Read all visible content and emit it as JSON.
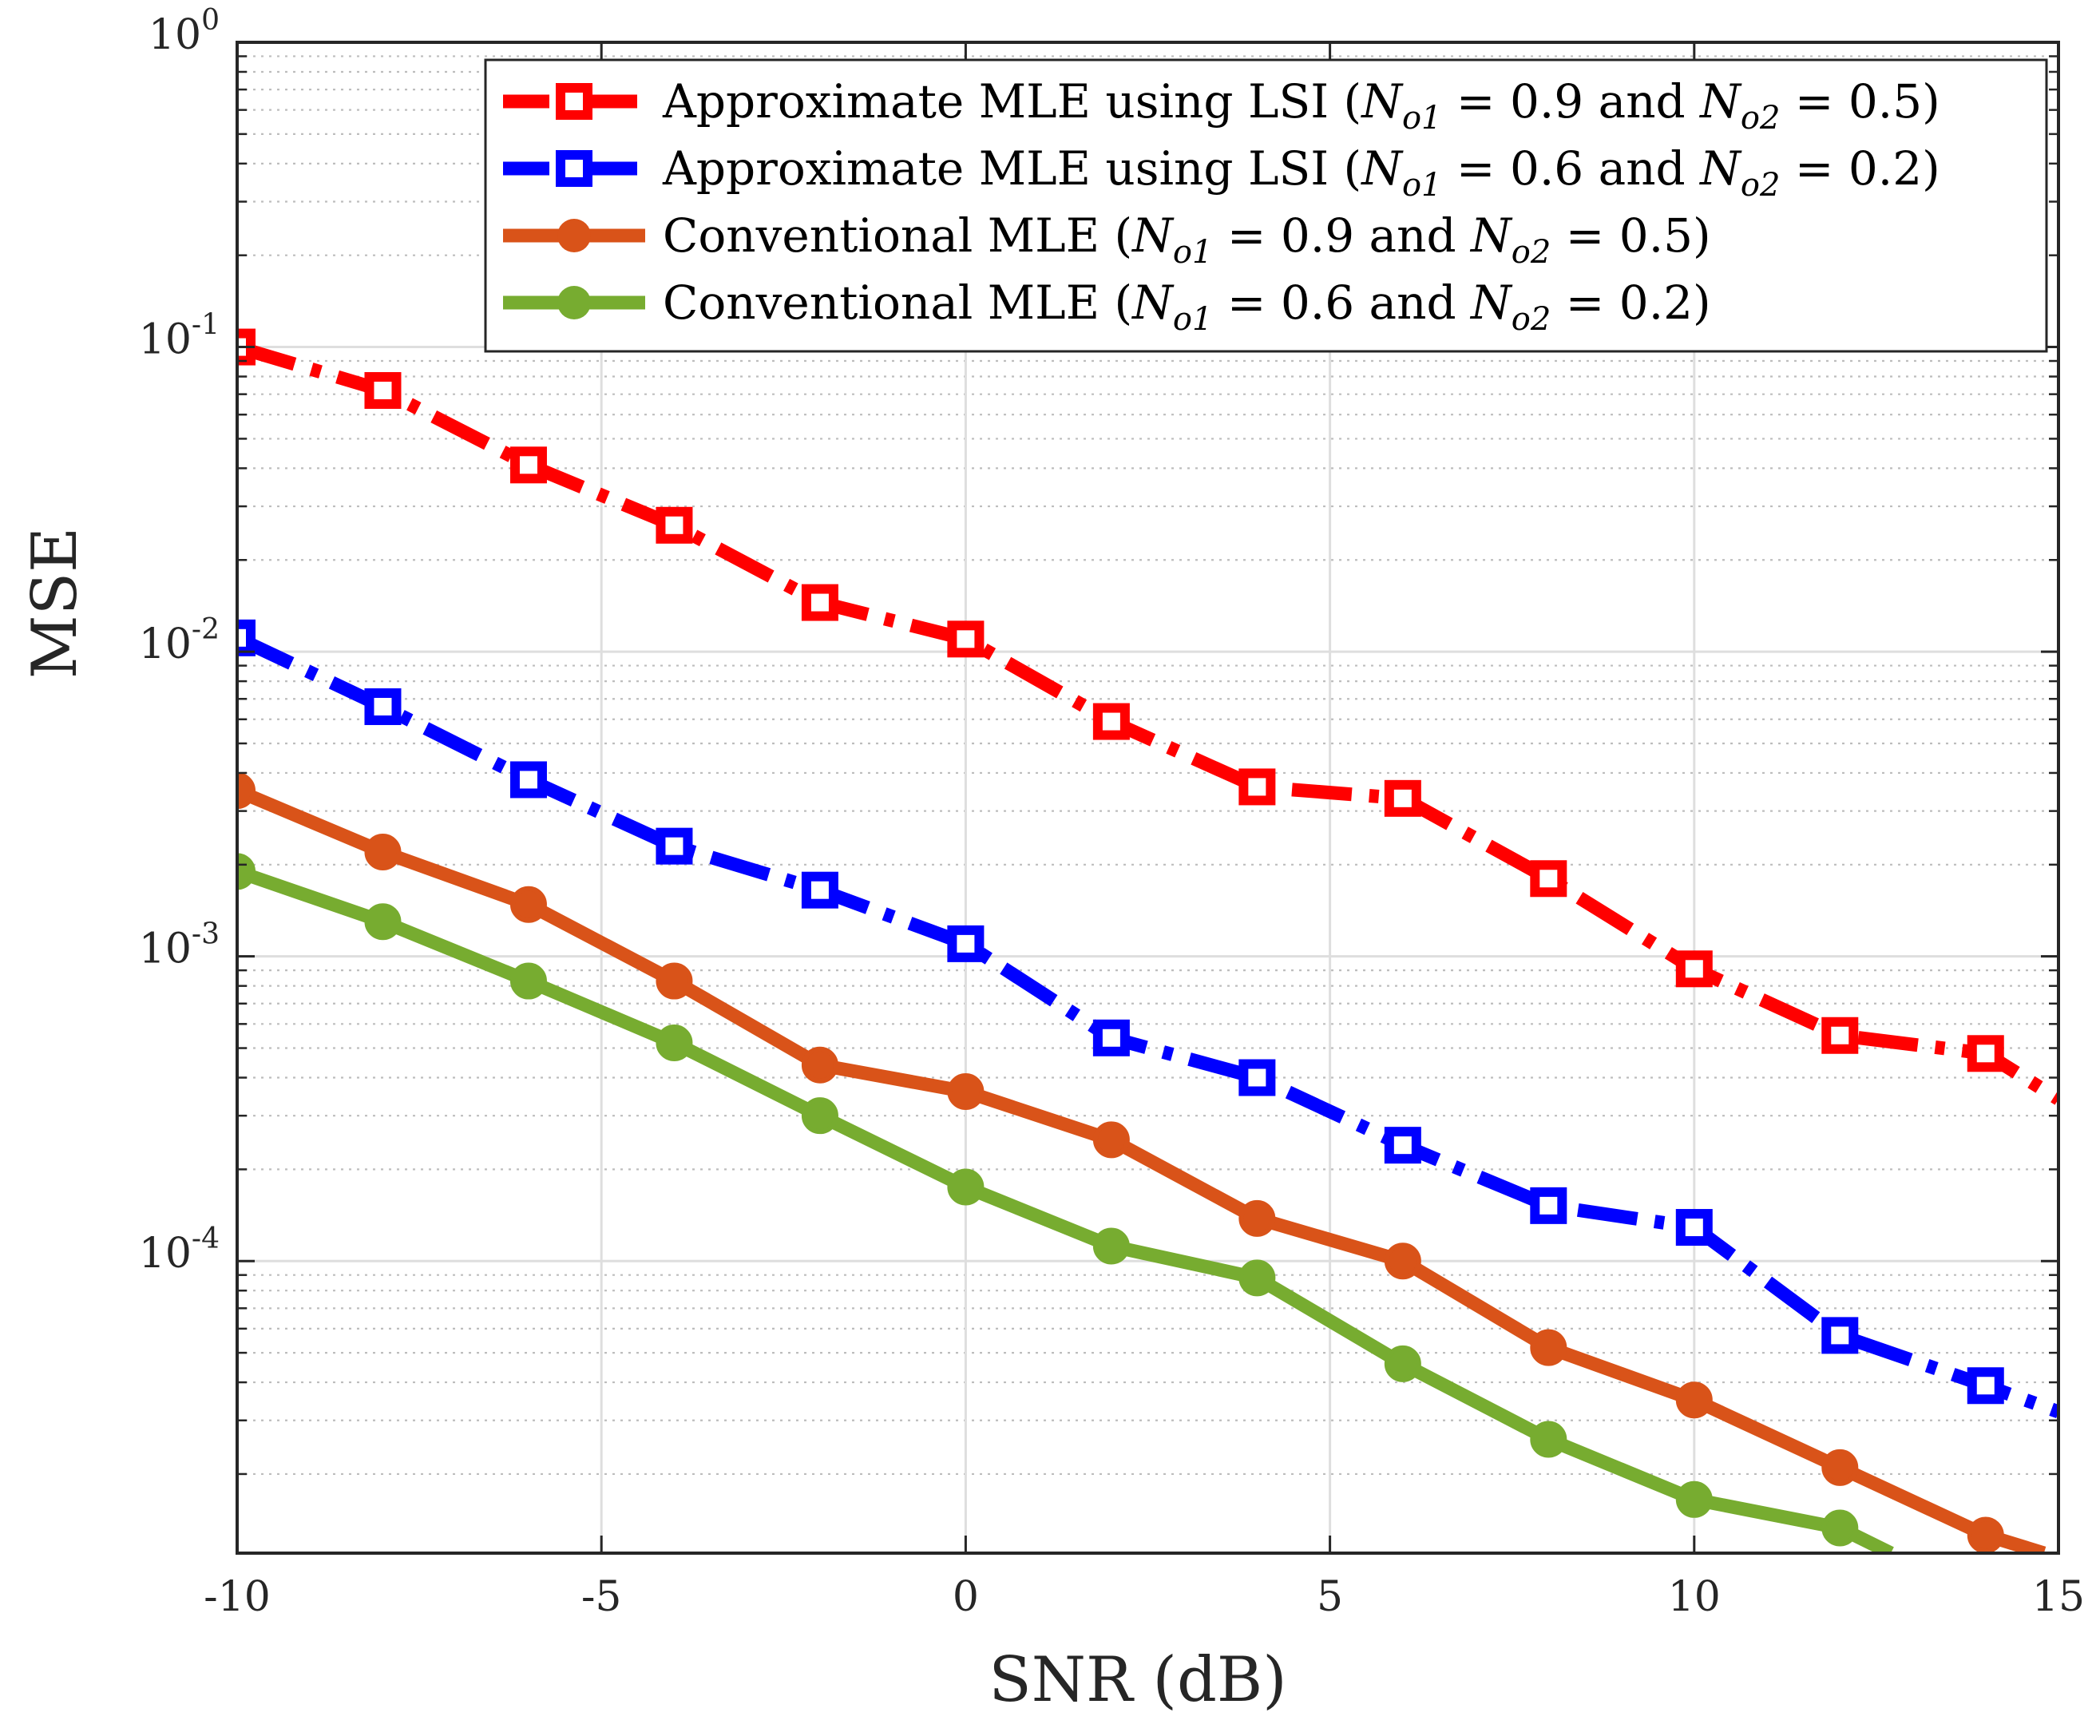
{
  "chart_data": {
    "type": "line",
    "xlabel": "SNR (dB)",
    "ylabel": "MSE",
    "yscale": "log",
    "xlim": [
      -10,
      15
    ],
    "ylim": [
      1.1e-05,
      1.0
    ],
    "x_ticks": [
      -10,
      -5,
      0,
      5,
      10,
      15
    ],
    "x_tick_labels": [
      "-10",
      "-5",
      "0",
      "5",
      "10",
      "15"
    ],
    "y_ticks": [
      {
        "value": 1.0,
        "base": "10",
        "exp": "0"
      },
      {
        "value": 0.1,
        "base": "10",
        "exp": "-1"
      },
      {
        "value": 0.01,
        "base": "10",
        "exp": "-2"
      },
      {
        "value": 0.001,
        "base": "10",
        "exp": "-3"
      },
      {
        "value": 0.0001,
        "base": "10",
        "exp": "-4"
      }
    ],
    "grid": true,
    "legend_position": "top-right",
    "series": [
      {
        "name": "Approximate MLE using LSI (N_o1 = 0.9 and N_o2 = 0.5)",
        "legend": {
          "prefix": "Approximate MLE using LSI (",
          "a": "0.9",
          "b": "0.5"
        },
        "color": "#ff0000",
        "style": "dashdot",
        "marker": "square",
        "x": [
          -10,
          -8,
          -6,
          -4,
          -2,
          0,
          2,
          4,
          6,
          8,
          10,
          12,
          14,
          15
        ],
        "y": [
          0.1,
          0.072,
          0.041,
          0.026,
          0.0145,
          0.011,
          0.0059,
          0.0036,
          0.0033,
          0.0018,
          0.00091,
          0.00055,
          0.00048,
          0.00034
        ],
        "markers": [
          true,
          true,
          true,
          true,
          true,
          true,
          true,
          true,
          true,
          true,
          true,
          true,
          true,
          false
        ]
      },
      {
        "name": "Approximate MLE using LSI (N_o1 = 0.6 and N_o2 = 0.2)",
        "legend": {
          "prefix": "Approximate MLE using LSI (",
          "a": "0.6",
          "b": "0.2"
        },
        "color": "#0000ff",
        "style": "dashdot",
        "marker": "square",
        "x": [
          -10,
          -8,
          -6,
          -4,
          -2,
          0,
          2,
          4,
          6,
          8,
          10,
          12,
          14,
          15
        ],
        "y": [
          0.0111,
          0.0066,
          0.0038,
          0.0023,
          0.00165,
          0.0011,
          0.00054,
          0.0004,
          0.00024,
          0.000152,
          0.000129,
          5.7e-05,
          3.9e-05,
          3.2e-05
        ],
        "markers": [
          true,
          true,
          true,
          true,
          true,
          true,
          true,
          true,
          true,
          true,
          true,
          true,
          true,
          false
        ]
      },
      {
        "name": "Conventional MLE (N_o1 = 0.9 and N_o2 = 0.5)",
        "legend": {
          "prefix": "Conventional MLE (",
          "a": "0.9",
          "b": "0.5"
        },
        "color": "#d95319",
        "style": "solid",
        "marker": "circle",
        "x": [
          -10,
          -8,
          -6,
          -4,
          -2,
          0,
          2,
          4,
          6,
          8,
          10,
          12,
          14,
          14.8
        ],
        "y": [
          0.0035,
          0.0022,
          0.00148,
          0.00083,
          0.00044,
          0.00036,
          0.00025,
          0.000138,
          0.0001,
          5.2e-05,
          3.5e-05,
          2.1e-05,
          1.26e-05,
          1.1e-05
        ],
        "markers": [
          true,
          true,
          true,
          true,
          true,
          true,
          true,
          true,
          true,
          true,
          true,
          true,
          true,
          false
        ]
      },
      {
        "name": "Conventional MLE (N_o1 = 0.6 and N_o2 = 0.2)",
        "legend": {
          "prefix": "Conventional MLE (",
          "a": "0.6",
          "b": "0.2"
        },
        "color": "#77ac30",
        "style": "solid",
        "marker": "circle",
        "x": [
          -10,
          -8,
          -6,
          -4,
          -2,
          0,
          2,
          4,
          6,
          8,
          10,
          12,
          12.7
        ],
        "y": [
          0.0019,
          0.0013,
          0.00083,
          0.00052,
          0.0003,
          0.000175,
          0.000112,
          8.8e-05,
          4.6e-05,
          2.6e-05,
          1.65e-05,
          1.33e-05,
          1.1e-05
        ],
        "markers": [
          true,
          true,
          true,
          true,
          true,
          true,
          true,
          true,
          true,
          true,
          true,
          true,
          false
        ]
      }
    ]
  }
}
